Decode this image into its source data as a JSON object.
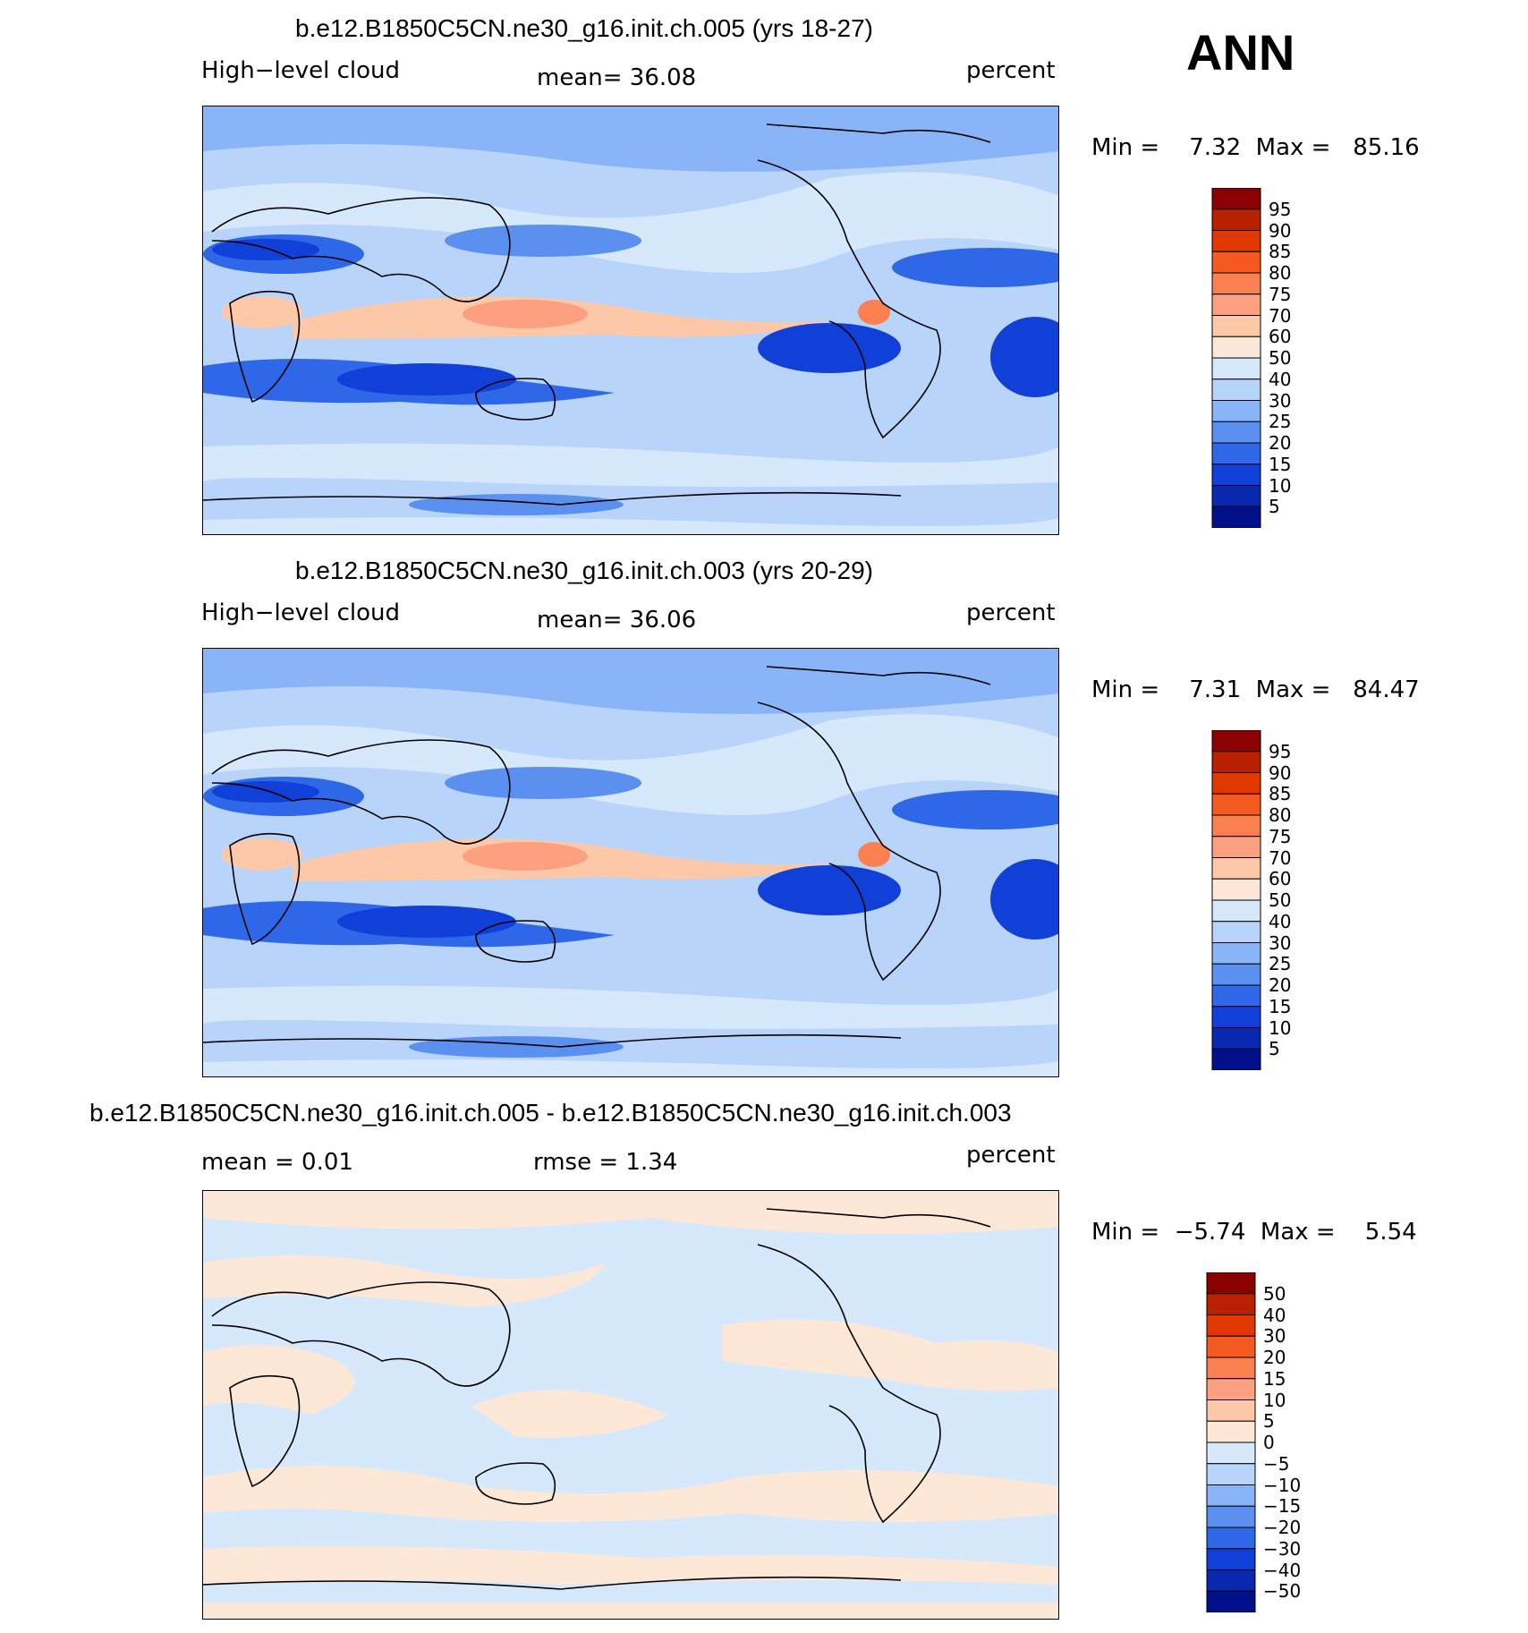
{
  "season": "ANN",
  "panels": [
    {
      "title": "b.e12.B1850C5CN.ne30_g16.init.ch.005 (yrs 18-27)",
      "left_label": "High−level cloud",
      "center_label": "mean=   36.08",
      "right_label": "percent",
      "minmax": "Min =    7.32  Max =   85.16",
      "levels": [
        "95",
        "90",
        "85",
        "80",
        "75",
        "70",
        "60",
        "50",
        "40",
        "30",
        "25",
        "20",
        "15",
        "10",
        "5"
      ],
      "colors": [
        "#8b0000",
        "#b82000",
        "#e03800",
        "#f55a20",
        "#fa8050",
        "#fca080",
        "#fdc8a8",
        "#fde8d8",
        "#d6e8fb",
        "#b8d4fb",
        "#8ab4f8",
        "#5b90f0",
        "#2e68e8",
        "#1040d8",
        "#0828b0",
        "#00108a"
      ],
      "mean": 36.08,
      "min": 7.32,
      "max": 85.16
    },
    {
      "title": "b.e12.B1850C5CN.ne30_g16.init.ch.003 (yrs 20-29)",
      "left_label": "High−level cloud",
      "center_label": "mean=   36.06",
      "right_label": "percent",
      "minmax": "Min =    7.31  Max =   84.47",
      "levels": [
        "95",
        "90",
        "85",
        "80",
        "75",
        "70",
        "60",
        "50",
        "40",
        "30",
        "25",
        "20",
        "15",
        "10",
        "5"
      ],
      "colors": [
        "#8b0000",
        "#b82000",
        "#e03800",
        "#f55a20",
        "#fa8050",
        "#fca080",
        "#fdc8a8",
        "#fde8d8",
        "#d6e8fb",
        "#b8d4fb",
        "#8ab4f8",
        "#5b90f0",
        "#2e68e8",
        "#1040d8",
        "#0828b0",
        "#00108a"
      ],
      "mean": 36.06,
      "min": 7.31,
      "max": 84.47
    },
    {
      "title": "b.e12.B1850C5CN.ne30_g16.init.ch.005 - b.e12.B1850C5CN.ne30_g16.init.ch.003",
      "left_label": "mean =    0.01",
      "center_label": "rmse =    1.34",
      "right_label": "percent",
      "minmax": "Min =  −5.74  Max =    5.54",
      "levels": [
        "50",
        "40",
        "30",
        "20",
        "15",
        "10",
        "5",
        "0",
        "−5",
        "−10",
        "−15",
        "−20",
        "−30",
        "−40",
        "−50"
      ],
      "colors": [
        "#8b0000",
        "#b82000",
        "#e03800",
        "#f55a20",
        "#fa8050",
        "#fca080",
        "#fdc8a8",
        "#fde8d8",
        "#d6e8fb",
        "#b8d4fb",
        "#8ab4f8",
        "#5b90f0",
        "#2e68e8",
        "#1040d8",
        "#0828b0",
        "#00108a"
      ],
      "mean": 0.01,
      "rmse": 1.34,
      "min": -5.74,
      "max": 5.54
    }
  ]
}
